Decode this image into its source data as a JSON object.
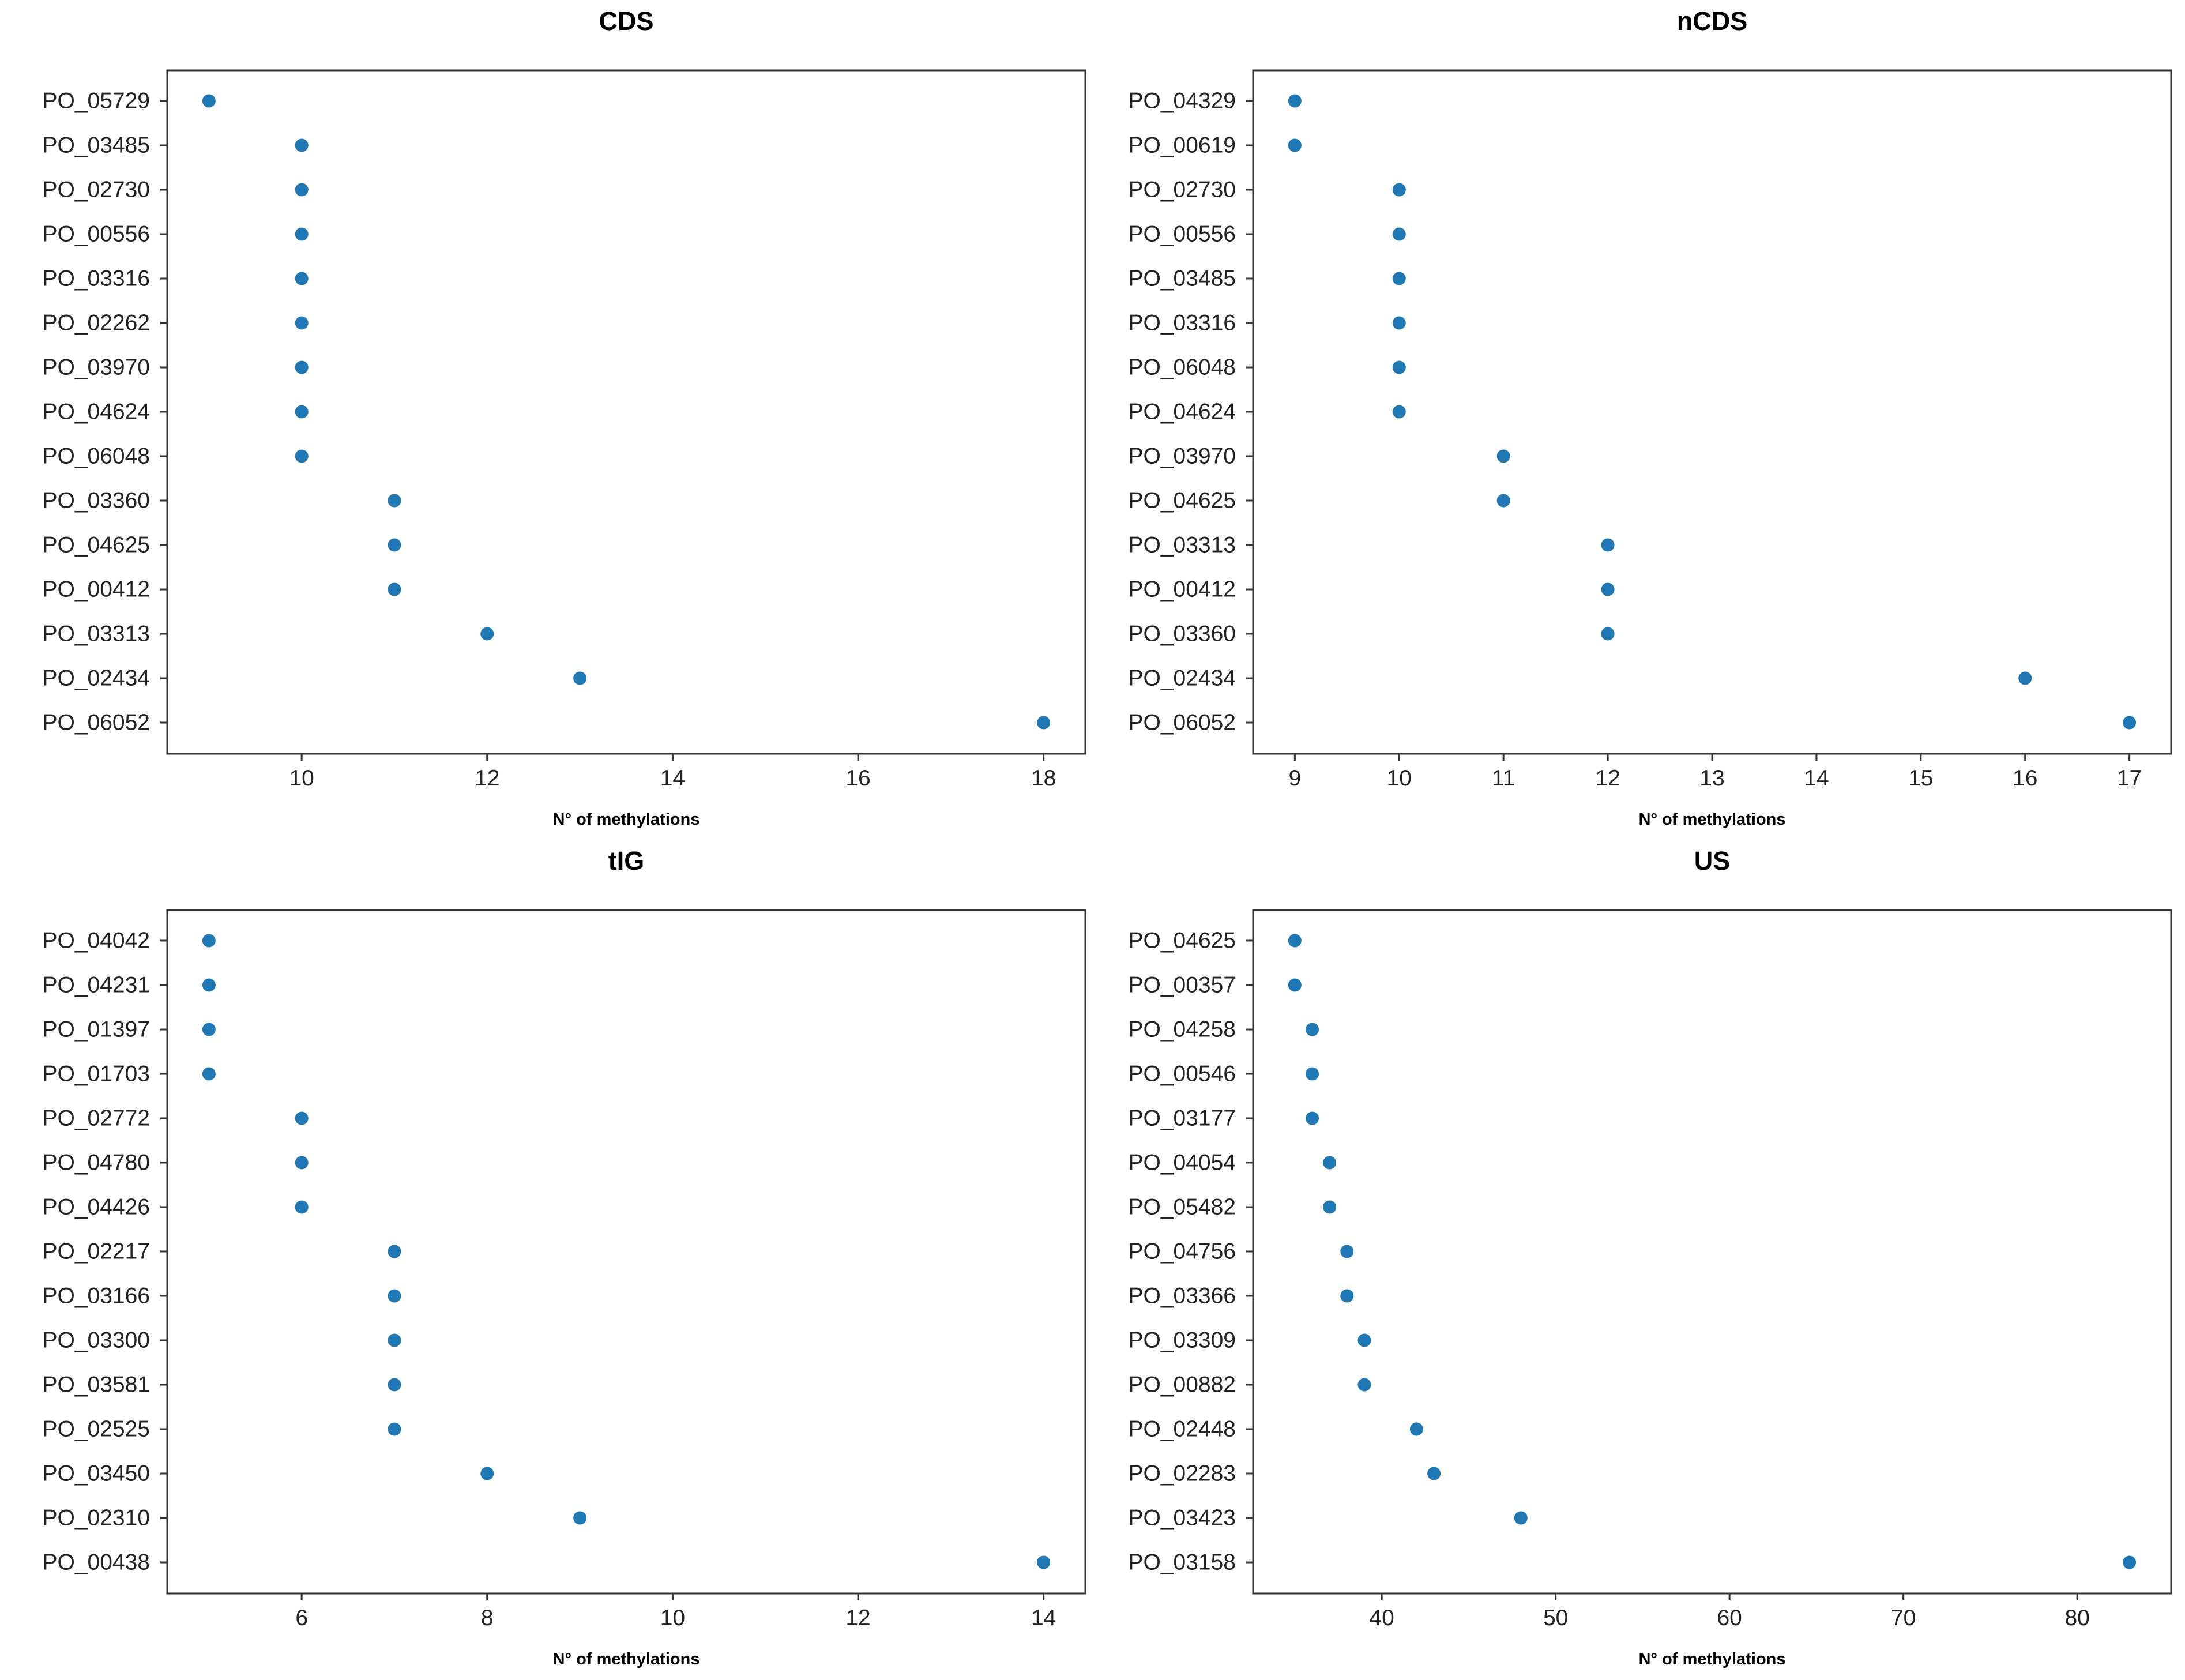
{
  "figure": {
    "marker_color": "#1f77b4"
  },
  "chart_data": [
    {
      "type": "scatter",
      "title": "CDS",
      "xlabel": "N° of methylations",
      "ylabel": "",
      "xlim": [
        8.55,
        18.45
      ],
      "xticks": [
        10,
        12,
        14,
        16,
        18
      ],
      "categories": [
        "PO_05729",
        "PO_03485",
        "PO_02730",
        "PO_00556",
        "PO_03316",
        "PO_02262",
        "PO_03970",
        "PO_04624",
        "PO_06048",
        "PO_03360",
        "PO_04625",
        "PO_00412",
        "PO_03313",
        "PO_02434",
        "PO_06052"
      ],
      "values": [
        9,
        10,
        10,
        10,
        10,
        10,
        10,
        10,
        10,
        11,
        11,
        11,
        12,
        13,
        18
      ]
    },
    {
      "type": "scatter",
      "title": "nCDS",
      "xlabel": "N° of methylations",
      "ylabel": "",
      "xlim": [
        8.6,
        17.4
      ],
      "xticks": [
        9,
        10,
        11,
        12,
        13,
        14,
        15,
        16,
        17
      ],
      "categories": [
        "PO_04329",
        "PO_00619",
        "PO_02730",
        "PO_00556",
        "PO_03485",
        "PO_03316",
        "PO_06048",
        "PO_04624",
        "PO_03970",
        "PO_04625",
        "PO_03313",
        "PO_00412",
        "PO_03360",
        "PO_02434",
        "PO_06052"
      ],
      "values": [
        9,
        9,
        10,
        10,
        10,
        10,
        10,
        10,
        11,
        11,
        12,
        12,
        12,
        16,
        17
      ]
    },
    {
      "type": "scatter",
      "title": "tIG",
      "xlabel": "N° of methylations",
      "ylabel": "",
      "xlim": [
        4.55,
        14.45
      ],
      "xticks": [
        6,
        8,
        10,
        12,
        14
      ],
      "categories": [
        "PO_04042",
        "PO_04231",
        "PO_01397",
        "PO_01703",
        "PO_02772",
        "PO_04780",
        "PO_04426",
        "PO_02217",
        "PO_03166",
        "PO_03300",
        "PO_03581",
        "PO_02525",
        "PO_03450",
        "PO_02310",
        "PO_00438"
      ],
      "values": [
        5,
        5,
        5,
        5,
        6,
        6,
        6,
        7,
        7,
        7,
        7,
        7,
        8,
        9,
        14
      ]
    },
    {
      "type": "scatter",
      "title": "US",
      "xlabel": "N° of methylations",
      "ylabel": "",
      "xlim": [
        32.6,
        85.4
      ],
      "xticks": [
        40,
        50,
        60,
        70,
        80
      ],
      "categories": [
        "PO_04625",
        "PO_00357",
        "PO_04258",
        "PO_00546",
        "PO_03177",
        "PO_04054",
        "PO_05482",
        "PO_04756",
        "PO_03366",
        "PO_03309",
        "PO_00882",
        "PO_02448",
        "PO_02283",
        "PO_03423",
        "PO_03158"
      ],
      "values": [
        35,
        35,
        36,
        36,
        36,
        37,
        37,
        38,
        38,
        39,
        39,
        42,
        43,
        48,
        83
      ]
    }
  ]
}
